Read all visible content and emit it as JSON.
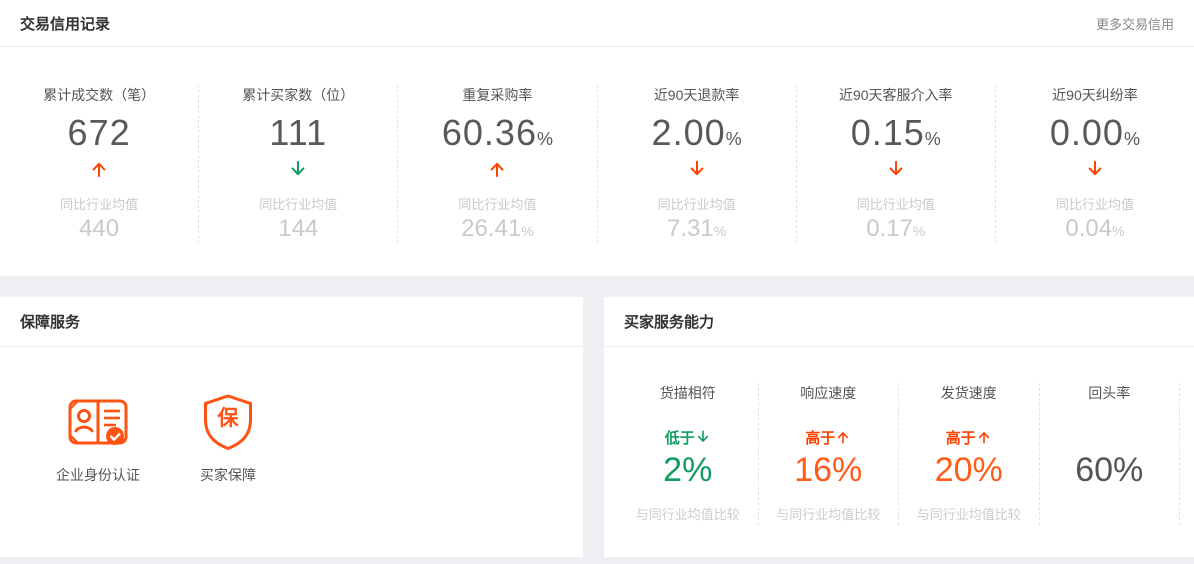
{
  "colors": {
    "accent_orange": "#ff4200",
    "number_orange": "#ff5c1a",
    "green": "#0f9d62",
    "dark_value": "#555555"
  },
  "credit_panel": {
    "title": "交易信用记录",
    "more_link": "更多交易信用",
    "compare_label": "同比行业均值",
    "stats": [
      {
        "label": "累计成交数（笔）",
        "value": "672",
        "suffix": "",
        "trend": "up",
        "trend_color": "#ff4200",
        "avg": "440",
        "avg_suffix": ""
      },
      {
        "label": "累计买家数（位）",
        "value": "111",
        "suffix": "",
        "trend": "down",
        "trend_color": "#0f9d62",
        "avg": "144",
        "avg_suffix": ""
      },
      {
        "label": "重复采购率",
        "value": "60.36",
        "suffix": "%",
        "trend": "up",
        "trend_color": "#ff4200",
        "avg": "26.41",
        "avg_suffix": "%"
      },
      {
        "label": "近90天退款率",
        "value": "2.00",
        "suffix": "%",
        "trend": "down",
        "trend_color": "#ff4200",
        "avg": "7.31",
        "avg_suffix": "%"
      },
      {
        "label": "近90天客服介入率",
        "value": "0.15",
        "suffix": "%",
        "trend": "down",
        "trend_color": "#ff4200",
        "avg": "0.17",
        "avg_suffix": "%"
      },
      {
        "label": "近90天纠纷率",
        "value": "0.00",
        "suffix": "%",
        "trend": "down",
        "trend_color": "#ff4200",
        "avg": "0.04",
        "avg_suffix": "%"
      }
    ]
  },
  "guarantee_panel": {
    "title": "保障服务",
    "badges": [
      {
        "icon": "id-card-check-icon",
        "label": "企业身份认证"
      },
      {
        "icon": "shield-bao-icon",
        "label": "买家保障",
        "shield_char": "保"
      }
    ]
  },
  "service_panel": {
    "title": "买家服务能力",
    "compare_label": "与同行业均值比较",
    "metrics": [
      {
        "label": "货描相符",
        "comparator": "低于",
        "trend": "down",
        "trend_color": "#0f9d62",
        "value": "2%",
        "value_color": "#0f9d62",
        "show_compare": true
      },
      {
        "label": "响应速度",
        "comparator": "高于",
        "trend": "up",
        "trend_color": "#ff4200",
        "value": "16%",
        "value_color": "#ff5c1a",
        "show_compare": true
      },
      {
        "label": "发货速度",
        "comparator": "高于",
        "trend": "up",
        "trend_color": "#ff4200",
        "value": "20%",
        "value_color": "#ff5c1a",
        "show_compare": true
      },
      {
        "label": "回头率",
        "comparator": "",
        "value": "60%",
        "value_color": "#555555",
        "show_compare": false
      }
    ]
  }
}
